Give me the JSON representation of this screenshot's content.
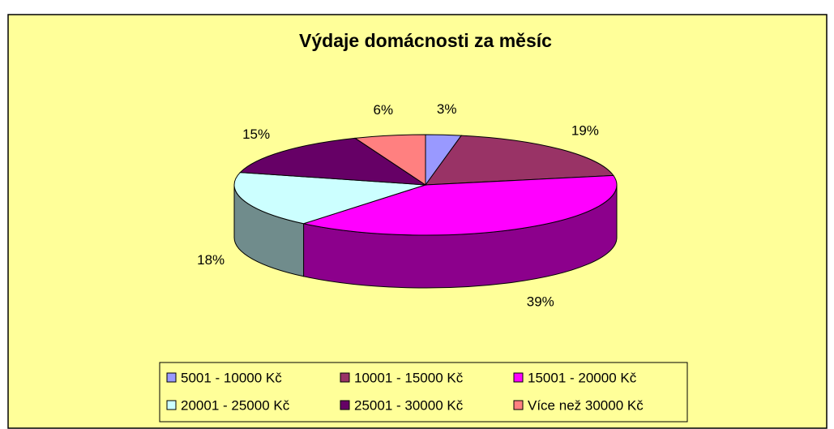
{
  "chart_data": {
    "type": "pie",
    "title": "Výdaje domácnosti za měsíc",
    "categories": [
      "5001 - 10000 Kč",
      "10001 - 15000 Kč",
      "15001 - 20000 Kč",
      "20001 - 25000 Kč",
      "25001 - 30000 Kč",
      "Více než 30000 Kč"
    ],
    "values": [
      3,
      19,
      39,
      18,
      15,
      6
    ],
    "value_labels": [
      "3%",
      "19%",
      "39%",
      "18%",
      "15%",
      "6%"
    ],
    "colors": [
      "#9999ff",
      "#993366",
      "#ff00ff",
      "#ccffff",
      "#660066",
      "#ff8080"
    ],
    "legend": "bottom"
  }
}
